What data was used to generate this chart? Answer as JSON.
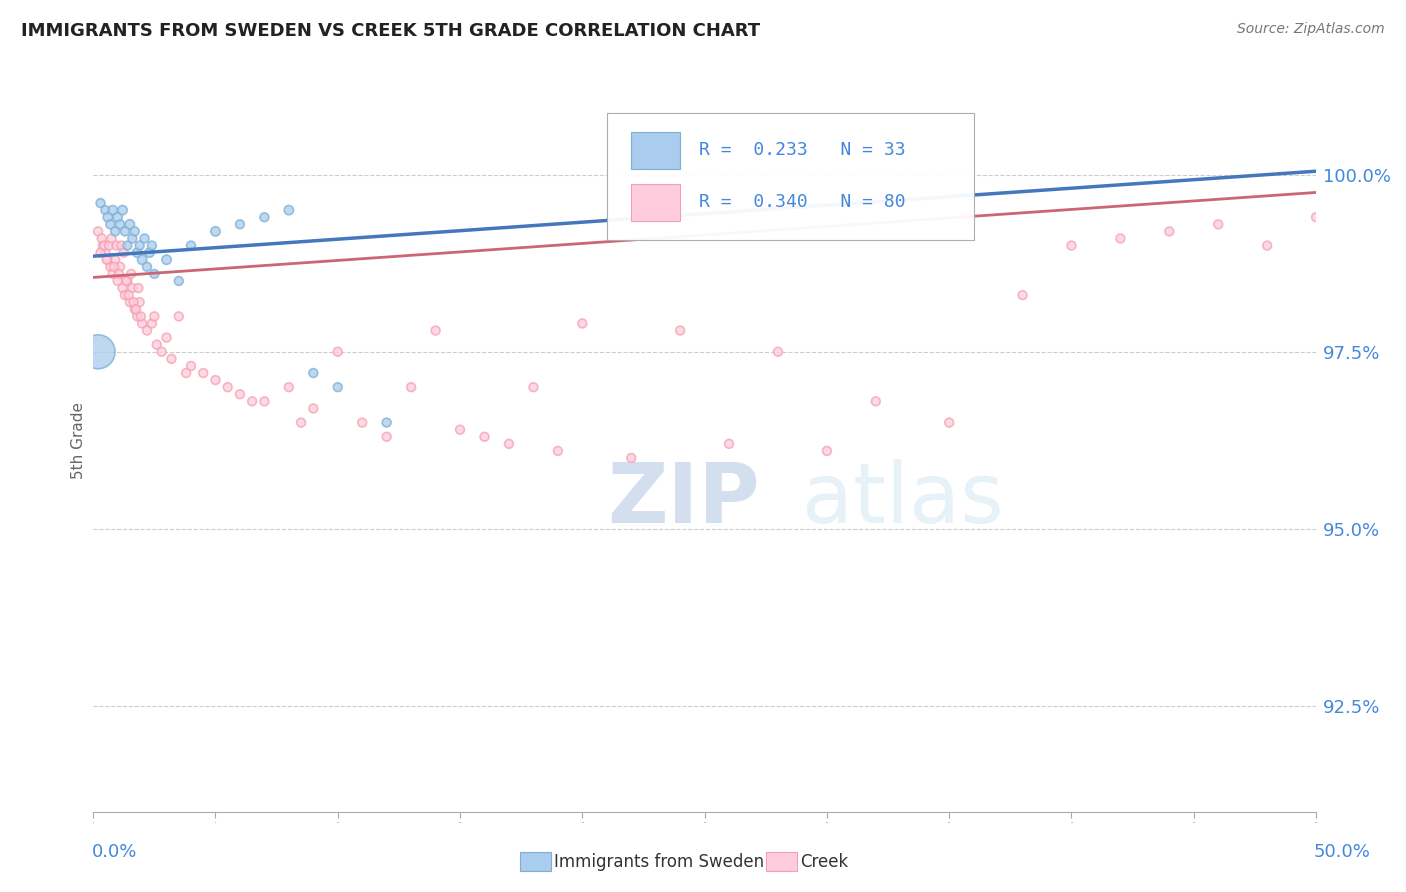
{
  "title": "IMMIGRANTS FROM SWEDEN VS CREEK 5TH GRADE CORRELATION CHART",
  "source": "Source: ZipAtlas.com",
  "ylabel": "5th Grade",
  "ytick_vals": [
    92.5,
    95.0,
    97.5,
    100.0
  ],
  "xmin": 0.0,
  "xmax": 50.0,
  "ymin": 91.0,
  "ymax": 101.5,
  "legend_blue_R": "R = 0.233",
  "legend_blue_N": "N = 33",
  "legend_pink_R": "R = 0.340",
  "legend_pink_N": "N = 80",
  "blue_color": "#7BAFD4",
  "pink_color": "#F4A0B0",
  "blue_fill": "#AACCEE",
  "pink_fill": "#FFCCDD",
  "blue_line_color": "#4477BB",
  "pink_line_color": "#CC6677",
  "watermark_zip": "ZIP",
  "watermark_atlas": "atlas",
  "sweden_x": [
    0.3,
    0.5,
    0.6,
    0.7,
    0.8,
    0.9,
    1.0,
    1.1,
    1.2,
    1.3,
    1.4,
    1.5,
    1.6,
    1.7,
    1.8,
    1.9,
    2.0,
    2.1,
    2.2,
    2.3,
    2.4,
    2.5,
    3.0,
    3.5,
    4.0,
    5.0,
    6.0,
    7.0,
    8.0,
    9.0,
    10.0,
    12.0,
    0.2
  ],
  "sweden_y": [
    99.6,
    99.5,
    99.4,
    99.3,
    99.5,
    99.2,
    99.4,
    99.3,
    99.5,
    99.2,
    99.0,
    99.3,
    99.1,
    99.2,
    98.9,
    99.0,
    98.8,
    99.1,
    98.7,
    98.9,
    99.0,
    98.6,
    98.8,
    98.5,
    99.0,
    99.2,
    99.3,
    99.4,
    99.5,
    97.2,
    97.0,
    96.5,
    97.5
  ],
  "sweden_sizes": [
    40,
    40,
    45,
    40,
    45,
    40,
    45,
    40,
    45,
    40,
    40,
    45,
    40,
    40,
    45,
    40,
    45,
    40,
    40,
    45,
    40,
    40,
    45,
    40,
    40,
    45,
    40,
    40,
    45,
    40,
    40,
    40,
    600
  ],
  "creek_x": [
    0.2,
    0.4,
    0.5,
    0.6,
    0.7,
    0.8,
    0.9,
    1.0,
    1.1,
    1.2,
    1.3,
    1.4,
    1.5,
    1.6,
    1.7,
    1.8,
    1.9,
    2.0,
    2.2,
    2.4,
    2.6,
    2.8,
    3.0,
    3.2,
    3.5,
    4.0,
    4.5,
    5.0,
    5.5,
    6.0,
    7.0,
    8.0,
    9.0,
    10.0,
    11.0,
    12.0,
    13.0,
    14.0,
    15.0,
    16.0,
    17.0,
    18.0,
    19.0,
    20.0,
    22.0,
    24.0,
    26.0,
    28.0,
    30.0,
    32.0,
    35.0,
    38.0,
    40.0,
    42.0,
    44.0,
    46.0,
    48.0,
    50.0,
    0.3,
    0.35,
    0.45,
    0.55,
    0.65,
    0.75,
    0.85,
    0.95,
    1.05,
    1.15,
    1.25,
    1.35,
    1.45,
    1.55,
    1.65,
    1.75,
    1.85,
    1.95,
    2.5,
    3.8,
    6.5,
    8.5
  ],
  "creek_y": [
    99.2,
    99.0,
    98.9,
    98.8,
    98.7,
    98.6,
    98.8,
    98.5,
    98.7,
    98.4,
    98.3,
    98.5,
    98.2,
    98.4,
    98.1,
    98.0,
    98.2,
    97.9,
    97.8,
    97.9,
    97.6,
    97.5,
    97.7,
    97.4,
    98.0,
    97.3,
    97.2,
    97.1,
    97.0,
    96.9,
    96.8,
    97.0,
    96.7,
    97.5,
    96.5,
    96.3,
    97.0,
    97.8,
    96.4,
    96.3,
    96.2,
    97.0,
    96.1,
    97.9,
    96.0,
    97.8,
    96.2,
    97.5,
    96.1,
    96.8,
    96.5,
    98.3,
    99.0,
    99.1,
    99.2,
    99.3,
    99.0,
    99.4,
    98.9,
    99.1,
    99.0,
    98.8,
    99.0,
    99.1,
    98.7,
    99.0,
    98.6,
    99.0,
    98.9,
    98.5,
    98.3,
    98.6,
    98.2,
    98.1,
    98.4,
    98.0,
    98.0,
    97.2,
    96.8,
    96.5
  ],
  "creek_sizes": [
    40,
    40,
    40,
    40,
    40,
    40,
    40,
    40,
    40,
    40,
    40,
    40,
    40,
    40,
    40,
    40,
    40,
    40,
    40,
    40,
    40,
    40,
    40,
    40,
    40,
    40,
    40,
    40,
    40,
    40,
    40,
    40,
    40,
    40,
    40,
    40,
    40,
    40,
    40,
    40,
    40,
    40,
    40,
    40,
    40,
    40,
    40,
    40,
    40,
    40,
    40,
    40,
    40,
    40,
    40,
    40,
    40,
    40,
    40,
    40,
    40,
    40,
    40,
    40,
    40,
    40,
    40,
    40,
    40,
    40,
    40,
    40,
    40,
    40,
    40,
    40,
    40,
    40,
    40,
    40
  ],
  "blue_trendline_x0": 0.0,
  "blue_trendline_y0": 98.85,
  "blue_trendline_x1": 50.0,
  "blue_trendline_y1": 100.05,
  "pink_trendline_x0": 0.0,
  "pink_trendline_y0": 98.55,
  "pink_trendline_x1": 50.0,
  "pink_trendline_y1": 99.75
}
